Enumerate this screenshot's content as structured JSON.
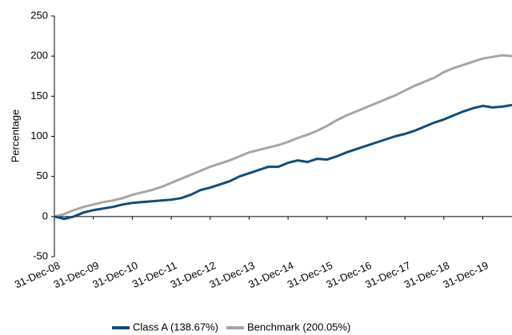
{
  "chart_data": {
    "type": "line",
    "y_label": "Percentage",
    "categories": [
      "31-Dec-08",
      null,
      null,
      null,
      "31-Dec-09",
      null,
      null,
      null,
      "31-Dec-10",
      null,
      null,
      null,
      "31-Dec-11",
      null,
      null,
      null,
      "31-Dec-12",
      null,
      null,
      null,
      "31-Dec-13",
      null,
      null,
      null,
      "31-Dec-14",
      null,
      null,
      null,
      "31-Dec-15",
      null,
      null,
      null,
      "31-Dec-16",
      null,
      null,
      null,
      "31-Dec-17",
      null,
      null,
      null,
      "31-Dec-18",
      null,
      null,
      null,
      "31-Dec-19",
      null,
      null,
      null
    ],
    "series": [
      {
        "name": "Class A (138.67%)",
        "color": "#0f4c7c",
        "values": [
          0,
          -3,
          0,
          5,
          8,
          10,
          12,
          15,
          17,
          18,
          19,
          20,
          21,
          23,
          27,
          33,
          36,
          40,
          44,
          50,
          54,
          58,
          62,
          62,
          67,
          70,
          68,
          72,
          71,
          75,
          80,
          84,
          88,
          92,
          96,
          100,
          103,
          107,
          112,
          117,
          121,
          126,
          131,
          135,
          138,
          136,
          137,
          139
        ]
      },
      {
        "name": "Benchmark (200.05%)",
        "color": "#a6a6a6",
        "values": [
          0,
          3,
          8,
          12,
          15,
          18,
          20,
          23,
          27,
          30,
          33,
          37,
          42,
          47,
          52,
          57,
          62,
          66,
          70,
          75,
          80,
          83,
          86,
          89,
          93,
          98,
          102,
          107,
          113,
          120,
          126,
          131,
          136,
          141,
          146,
          151,
          157,
          163,
          168,
          173,
          180,
          185,
          189,
          193,
          197,
          199,
          201,
          200
        ]
      }
    ],
    "ylim": [
      -50,
      250
    ],
    "yticks": [
      -50,
      0,
      50,
      100,
      150,
      200,
      250
    ],
    "grid": false,
    "legend": "bottom"
  }
}
